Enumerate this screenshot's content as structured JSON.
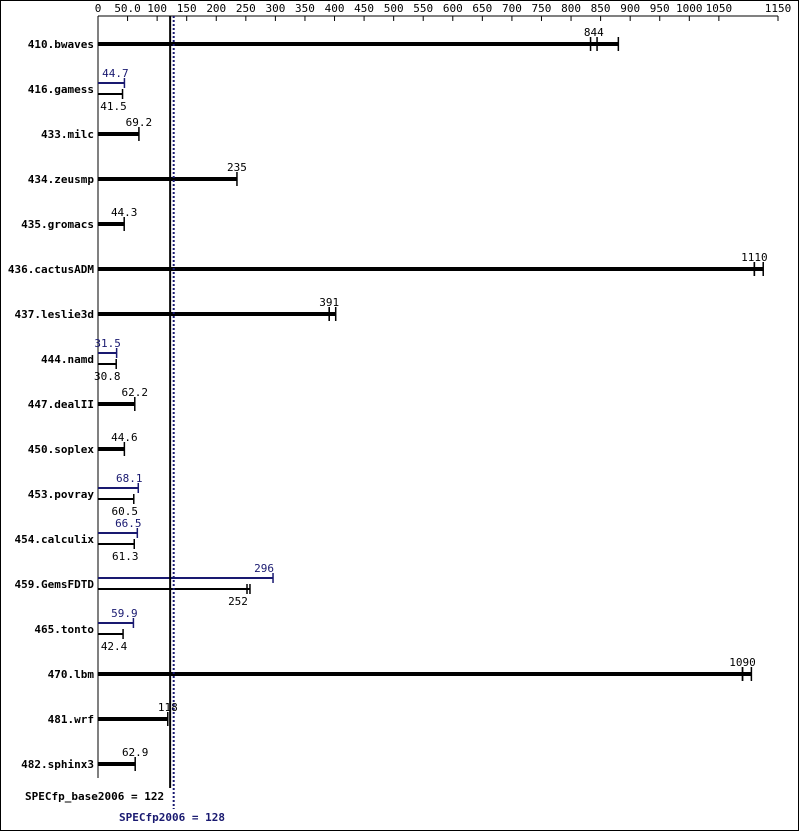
{
  "chart_data": {
    "type": "bar",
    "orientation": "horizontal",
    "title": "",
    "xlabel": "",
    "ylabel": "",
    "xlim": [
      0,
      1150
    ],
    "x_ticks": [
      0,
      50,
      100,
      150,
      200,
      250,
      300,
      350,
      400,
      450,
      500,
      550,
      600,
      650,
      700,
      750,
      800,
      850,
      900,
      950,
      1000,
      1050,
      1150
    ],
    "x_tick_labels": [
      "0",
      "50.0",
      "100",
      "150",
      "200",
      "250",
      "300",
      "350",
      "400",
      "450",
      "500",
      "550",
      "600",
      "650",
      "700",
      "750",
      "800",
      "850",
      "900",
      "950",
      "1000",
      "1050",
      "1150"
    ],
    "grid": false,
    "legend": "none",
    "categories": [
      "410.bwaves",
      "416.gamess",
      "433.milc",
      "434.zeusmp",
      "435.gromacs",
      "436.cactusADM",
      "437.leslie3d",
      "444.namd",
      "447.dealII",
      "450.soplex",
      "453.povray",
      "454.calculix",
      "459.GemsFDTD",
      "465.tonto",
      "470.lbm",
      "481.wrf",
      "482.sphinx3"
    ],
    "series": [
      {
        "values": [
          844,
          41.5,
          69.2,
          235,
          44.3,
          1110,
          391,
          30.8,
          62.2,
          44.6,
          60.5,
          61.3,
          252,
          42.4,
          1090,
          118,
          62.9
        ],
        "labels": [
          "844",
          "41.5",
          "69.2",
          "235",
          "44.3",
          "1110",
          "391",
          "30.8",
          "62.2",
          "44.6",
          "60.5",
          "61.3",
          "252",
          "42.4",
          "1090",
          "118",
          "62.9"
        ],
        "run_ranges": [
          [
            833,
            880
          ],
          null,
          null,
          null,
          null,
          [
            1110,
            1125
          ],
          [
            391,
            402
          ],
          null,
          null,
          null,
          null,
          null,
          [
            252,
            257
          ],
          null,
          [
            1090,
            1105
          ],
          null,
          null
        ]
      },
      {
        "values": [
          null,
          44.7,
          null,
          null,
          null,
          null,
          null,
          31.5,
          null,
          null,
          68.1,
          66.5,
          296,
          59.9,
          null,
          null,
          null
        ],
        "labels": [
          "",
          "44.7",
          "",
          "",
          "",
          "",
          "",
          "31.5",
          "",
          "",
          "68.1",
          "66.5",
          "296",
          "59.9",
          "",
          "",
          ""
        ]
      }
    ],
    "reference_lines": [
      {
        "value": 122,
        "label": "SPECfp_base2006 = 122",
        "style": "solid"
      },
      {
        "value": 128,
        "label": "SPECfp2006 = 128",
        "style": "dotted"
      }
    ],
    "colors": {
      "base": "#000000",
      "peak": "#191970",
      "axis": "#000000"
    }
  }
}
